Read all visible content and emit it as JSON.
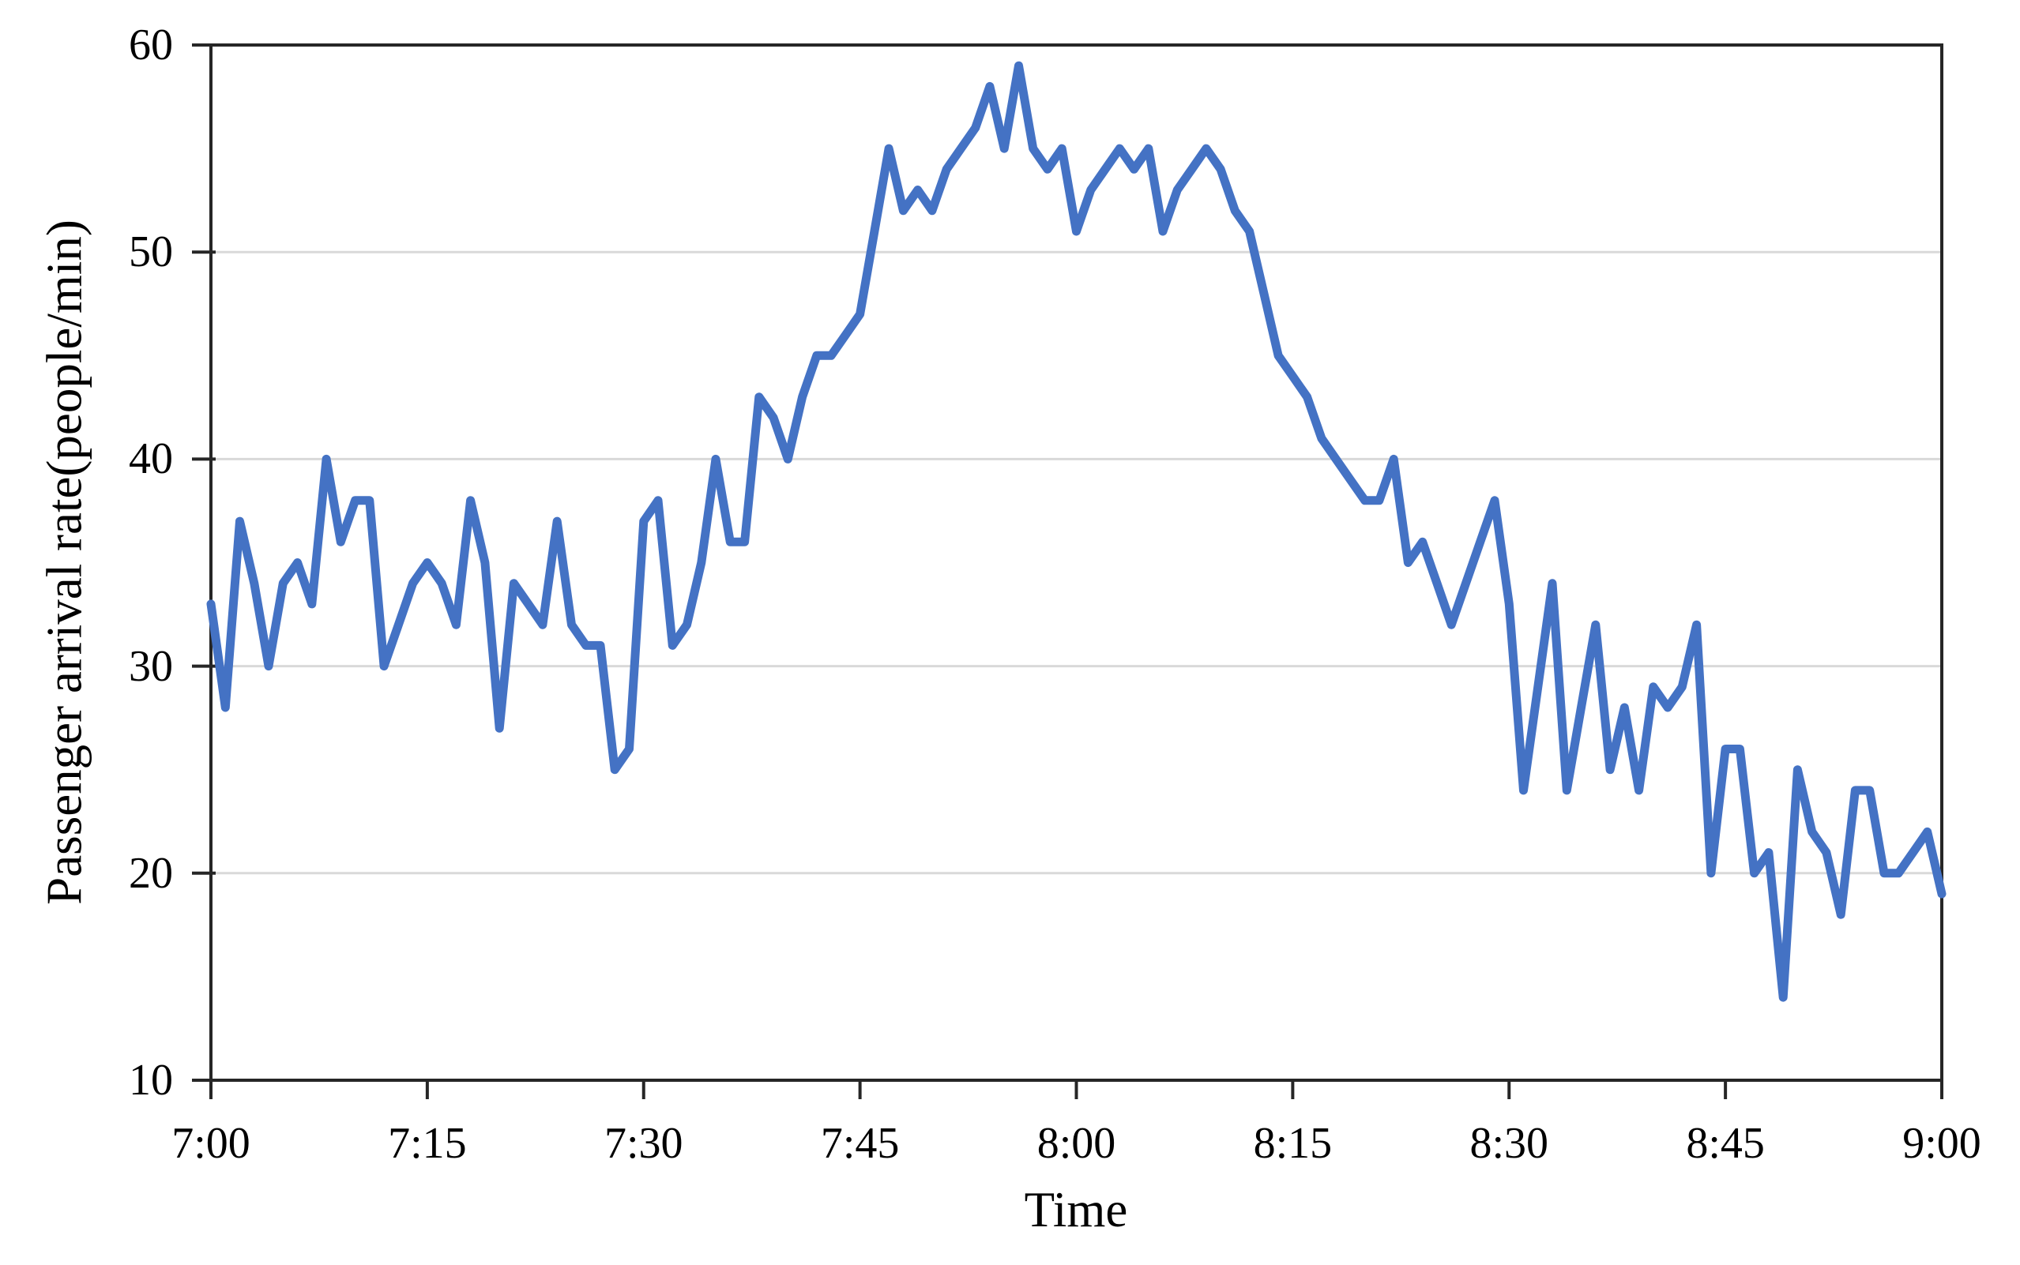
{
  "chart_data": {
    "type": "line",
    "title": "",
    "xlabel": "Time",
    "ylabel": "Passenger arrival rate(people/min)",
    "x_start": "7:00",
    "x_end": "9:00",
    "x_interval_minutes": 1,
    "x_tick_labels": [
      "7:00",
      "7:15",
      "7:30",
      "7:45",
      "8:00",
      "8:15",
      "8:30",
      "8:45",
      "9:00"
    ],
    "y_ticks": [
      10,
      20,
      30,
      40,
      50,
      60
    ],
    "ylim": [
      10,
      60
    ],
    "grid": "horizontal",
    "legend": "none",
    "line_color": "#4472C4",
    "gridline_color": "#D9D9D9",
    "axis_color": "#262626",
    "text_color": "#000000",
    "values": [
      33,
      28,
      37,
      34,
      30,
      34,
      35,
      33,
      40,
      36,
      38,
      38,
      30,
      32,
      34,
      35,
      34,
      32,
      38,
      35,
      27,
      34,
      33,
      32,
      37,
      32,
      31,
      31,
      25,
      26,
      37,
      38,
      31,
      32,
      35,
      40,
      36,
      36,
      43,
      42,
      40,
      43,
      45,
      45,
      46,
      47,
      51,
      55,
      52,
      53,
      52,
      54,
      55,
      56,
      58,
      55,
      59,
      55,
      54,
      55,
      51,
      53,
      54,
      55,
      54,
      55,
      51,
      53,
      54,
      55,
      54,
      52,
      51,
      48,
      45,
      44,
      43,
      41,
      40,
      39,
      38,
      38,
      40,
      35,
      36,
      34,
      32,
      34,
      36,
      38,
      33,
      24,
      29,
      34,
      24,
      28,
      32,
      25,
      28,
      24,
      29,
      28,
      29,
      32,
      20,
      26,
      26,
      20,
      21,
      14,
      25,
      22,
      21,
      18,
      24,
      24,
      20,
      20,
      21,
      22,
      19
    ]
  }
}
